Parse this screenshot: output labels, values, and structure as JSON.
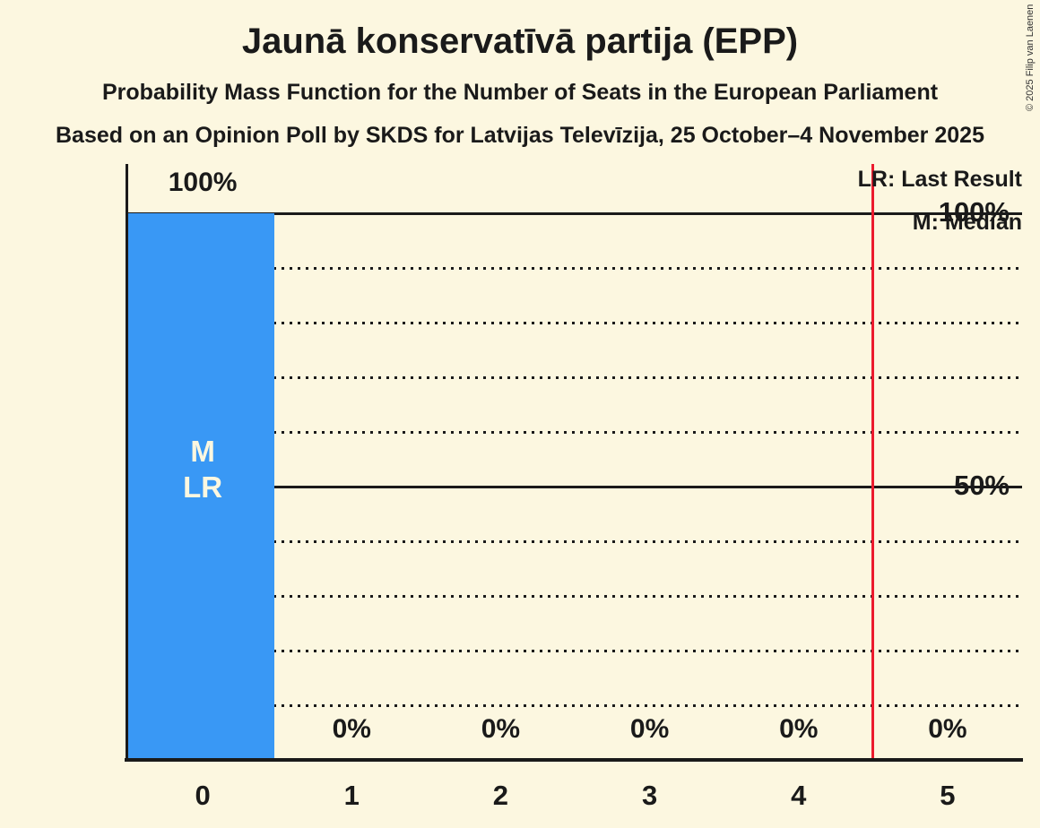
{
  "chart_data": {
    "type": "bar",
    "title": "Jaunā konservatīvā partija (EPP)",
    "subtitle": "Probability Mass Function for the Number of Seats in the European Parliament",
    "source_line": "Based on an Opinion Poll by SKDS for Latvijas Televīzija, 25 October–4 November 2025",
    "categories": [
      "0",
      "1",
      "2",
      "3",
      "4",
      "5"
    ],
    "values": [
      100,
      0,
      0,
      0,
      0,
      0
    ],
    "value_labels": [
      "100%",
      "0%",
      "0%",
      "0%",
      "0%",
      "0%"
    ],
    "ylim": [
      0,
      100
    ],
    "y_ticks": [
      {
        "value": 100,
        "label": "100%"
      },
      {
        "value": 50,
        "label": "50%"
      }
    ],
    "gridlines": {
      "solid": [
        100,
        50
      ],
      "dotted": [
        90,
        80,
        70,
        60,
        40,
        30,
        20,
        10
      ]
    },
    "legend": {
      "last_result": "LR: Last Result",
      "median": "M: Median"
    },
    "annotations": {
      "annotated_seat": "0",
      "median_label": "M",
      "last_result_label": "LR"
    },
    "red_line_seat_x": 4.5,
    "median_seat": 0,
    "last_result_seat": 0,
    "colors": {
      "background": "#fcf7e0",
      "bar": "#3998f5",
      "bar_text": "#fcf7e0",
      "red_line": "#ec1b2e",
      "text": "#1a1a1a"
    }
  },
  "copyright": "© 2025 Filip van Laenen"
}
